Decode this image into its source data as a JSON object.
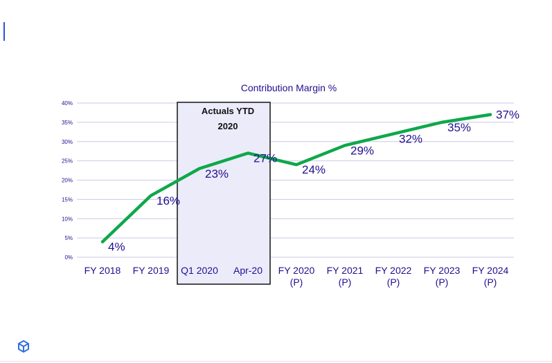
{
  "colors": {
    "text": "#1f0f8f",
    "line": "#0ea84a",
    "grid": "#c9c9e6",
    "highlight_fill": "#ecebfa",
    "highlight_border": "#111111",
    "accent": "#2a52d6",
    "logo": "#2f6fe0"
  },
  "icons": {
    "logo": "cube-logo-icon"
  },
  "chart_data": {
    "type": "line",
    "title": "Contribution Margin %",
    "xlabel": "",
    "ylabel": "",
    "categories": [
      [
        "FY 2018"
      ],
      [
        "FY 2019"
      ],
      [
        "Q1 2020"
      ],
      [
        "Apr-20"
      ],
      [
        "FY 2020",
        "(P)"
      ],
      [
        "FY 2021",
        "(P)"
      ],
      [
        "FY 2022",
        "(P)"
      ],
      [
        "FY 2023",
        "(P)"
      ],
      [
        "FY 2024",
        "(P)"
      ]
    ],
    "series": [
      {
        "values": [
          4,
          16,
          23,
          27,
          24,
          29,
          32,
          35,
          37
        ]
      }
    ],
    "data_labels": [
      "4%",
      "16%",
      "23%",
      "27%",
      "24%",
      "29%",
      "32%",
      "35%",
      "37%"
    ],
    "ylim": [
      0,
      40
    ],
    "yticks": [
      0,
      5,
      10,
      15,
      20,
      25,
      30,
      35,
      40
    ],
    "ytick_labels": [
      "0%",
      "5%",
      "10%",
      "15%",
      "20%",
      "25%",
      "30%",
      "35%",
      "40%"
    ],
    "grid": true,
    "legend": "none",
    "annotations": [
      {
        "text_lines": [
          "Actuals YTD",
          "2020"
        ],
        "categories": [
          "Q1 2020",
          "Apr-20"
        ]
      }
    ]
  }
}
